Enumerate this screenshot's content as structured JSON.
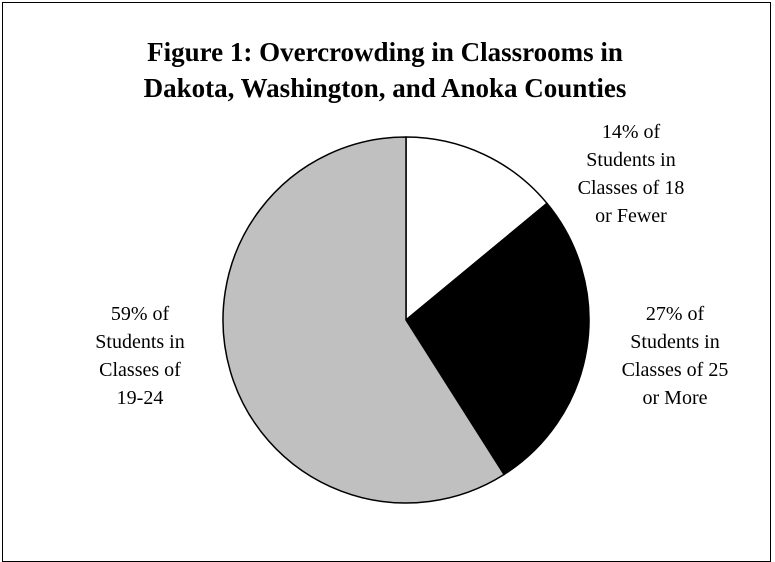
{
  "chart_data": {
    "type": "pie",
    "title_lines": [
      "Figure 1: Overcrowding in Classrooms in",
      "Dakota, Washington, and Anoka Counties"
    ],
    "slices": [
      {
        "value": 14,
        "color": "#ffffff",
        "label_lines": [
          "14% of",
          "Students in",
          "Classes of 18",
          "or Fewer"
        ]
      },
      {
        "value": 27,
        "color": "#000000",
        "label_lines": [
          "27% of",
          "Students in",
          "Classes of 25",
          "or More"
        ]
      },
      {
        "value": 59,
        "color": "#c0c0c0",
        "label_lines": [
          "59% of",
          "Students in",
          "Classes of",
          "19-24"
        ]
      }
    ],
    "legend": "none",
    "start_angle": "12 o'clock, clockwise"
  }
}
